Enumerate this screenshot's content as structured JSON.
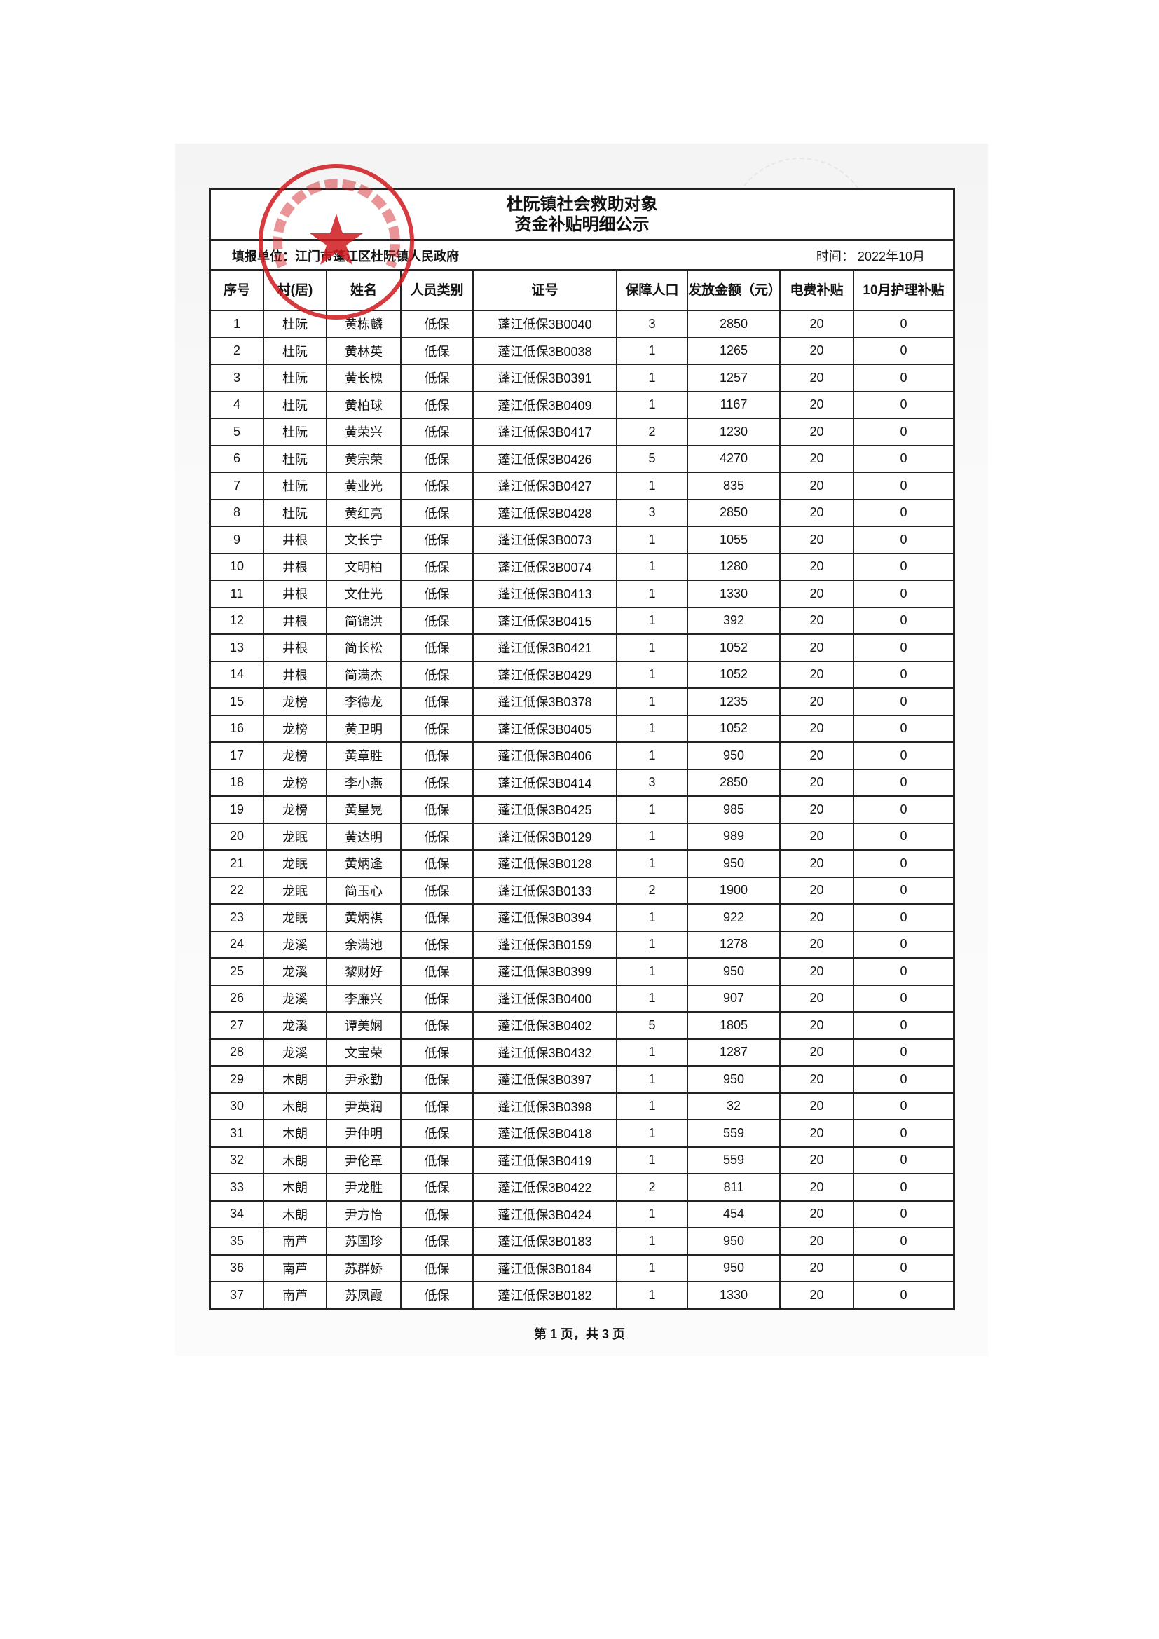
{
  "document": {
    "title_line1": "杜阮镇社会救助对象",
    "title_line2": "资金补贴明细公示",
    "unit_label": "填报单位：江门市蓬江区杜阮镇人民政府",
    "date_label": "时间：  2022年10月",
    "stamp_text": "江门市蓬江区杜阮镇人民政府",
    "stamp_color": "#d0191f",
    "footer": "第 1 页，共 3 页"
  },
  "table": {
    "headers": [
      "序号",
      "村(居)",
      "姓名",
      "人员类别",
      "证号",
      "保障人口",
      "发放金额（元）",
      "电费补贴",
      "10月护理补贴"
    ],
    "rows": [
      [
        "1",
        "杜阮",
        "黄栋麟",
        "低保",
        "蓬江低保3B0040",
        "3",
        "2850",
        "20",
        "0"
      ],
      [
        "2",
        "杜阮",
        "黄林英",
        "低保",
        "蓬江低保3B0038",
        "1",
        "1265",
        "20",
        "0"
      ],
      [
        "3",
        "杜阮",
        "黄长槐",
        "低保",
        "蓬江低保3B0391",
        "1",
        "1257",
        "20",
        "0"
      ],
      [
        "4",
        "杜阮",
        "黄柏球",
        "低保",
        "蓬江低保3B0409",
        "1",
        "1167",
        "20",
        "0"
      ],
      [
        "5",
        "杜阮",
        "黄荣兴",
        "低保",
        "蓬江低保3B0417",
        "2",
        "1230",
        "20",
        "0"
      ],
      [
        "6",
        "杜阮",
        "黄宗荣",
        "低保",
        "蓬江低保3B0426",
        "5",
        "4270",
        "20",
        "0"
      ],
      [
        "7",
        "杜阮",
        "黄业光",
        "低保",
        "蓬江低保3B0427",
        "1",
        "835",
        "20",
        "0"
      ],
      [
        "8",
        "杜阮",
        "黄红亮",
        "低保",
        "蓬江低保3B0428",
        "3",
        "2850",
        "20",
        "0"
      ],
      [
        "9",
        "井根",
        "文长宁",
        "低保",
        "蓬江低保3B0073",
        "1",
        "1055",
        "20",
        "0"
      ],
      [
        "10",
        "井根",
        "文明柏",
        "低保",
        "蓬江低保3B0074",
        "1",
        "1280",
        "20",
        "0"
      ],
      [
        "11",
        "井根",
        "文仕光",
        "低保",
        "蓬江低保3B0413",
        "1",
        "1330",
        "20",
        "0"
      ],
      [
        "12",
        "井根",
        "简锦洪",
        "低保",
        "蓬江低保3B0415",
        "1",
        "392",
        "20",
        "0"
      ],
      [
        "13",
        "井根",
        "简长松",
        "低保",
        "蓬江低保3B0421",
        "1",
        "1052",
        "20",
        "0"
      ],
      [
        "14",
        "井根",
        "简满杰",
        "低保",
        "蓬江低保3B0429",
        "1",
        "1052",
        "20",
        "0"
      ],
      [
        "15",
        "龙榜",
        "李德龙",
        "低保",
        "蓬江低保3B0378",
        "1",
        "1235",
        "20",
        "0"
      ],
      [
        "16",
        "龙榜",
        "黄卫明",
        "低保",
        "蓬江低保3B0405",
        "1",
        "1052",
        "20",
        "0"
      ],
      [
        "17",
        "龙榜",
        "黄章胜",
        "低保",
        "蓬江低保3B0406",
        "1",
        "950",
        "20",
        "0"
      ],
      [
        "18",
        "龙榜",
        "李小燕",
        "低保",
        "蓬江低保3B0414",
        "3",
        "2850",
        "20",
        "0"
      ],
      [
        "19",
        "龙榜",
        "黄星晃",
        "低保",
        "蓬江低保3B0425",
        "1",
        "985",
        "20",
        "0"
      ],
      [
        "20",
        "龙眠",
        "黄达明",
        "低保",
        "蓬江低保3B0129",
        "1",
        "989",
        "20",
        "0"
      ],
      [
        "21",
        "龙眠",
        "黄炳逢",
        "低保",
        "蓬江低保3B0128",
        "1",
        "950",
        "20",
        "0"
      ],
      [
        "22",
        "龙眠",
        "简玉心",
        "低保",
        "蓬江低保3B0133",
        "2",
        "1900",
        "20",
        "0"
      ],
      [
        "23",
        "龙眠",
        "黄炳祺",
        "低保",
        "蓬江低保3B0394",
        "1",
        "922",
        "20",
        "0"
      ],
      [
        "24",
        "龙溪",
        "余满池",
        "低保",
        "蓬江低保3B0159",
        "1",
        "1278",
        "20",
        "0"
      ],
      [
        "25",
        "龙溪",
        "黎财好",
        "低保",
        "蓬江低保3B0399",
        "1",
        "950",
        "20",
        "0"
      ],
      [
        "26",
        "龙溪",
        "李廉兴",
        "低保",
        "蓬江低保3B0400",
        "1",
        "907",
        "20",
        "0"
      ],
      [
        "27",
        "龙溪",
        "谭美娴",
        "低保",
        "蓬江低保3B0402",
        "5",
        "1805",
        "20",
        "0"
      ],
      [
        "28",
        "龙溪",
        "文宝荣",
        "低保",
        "蓬江低保3B0432",
        "1",
        "1287",
        "20",
        "0"
      ],
      [
        "29",
        "木朗",
        "尹永勤",
        "低保",
        "蓬江低保3B0397",
        "1",
        "950",
        "20",
        "0"
      ],
      [
        "30",
        "木朗",
        "尹英润",
        "低保",
        "蓬江低保3B0398",
        "1",
        "32",
        "20",
        "0"
      ],
      [
        "31",
        "木朗",
        "尹仲明",
        "低保",
        "蓬江低保3B0418",
        "1",
        "559",
        "20",
        "0"
      ],
      [
        "32",
        "木朗",
        "尹伦章",
        "低保",
        "蓬江低保3B0419",
        "1",
        "559",
        "20",
        "0"
      ],
      [
        "33",
        "木朗",
        "尹龙胜",
        "低保",
        "蓬江低保3B0422",
        "2",
        "811",
        "20",
        "0"
      ],
      [
        "34",
        "木朗",
        "尹方怡",
        "低保",
        "蓬江低保3B0424",
        "1",
        "454",
        "20",
        "0"
      ],
      [
        "35",
        "南芦",
        "苏国珍",
        "低保",
        "蓬江低保3B0183",
        "1",
        "950",
        "20",
        "0"
      ],
      [
        "36",
        "南芦",
        "苏群娇",
        "低保",
        "蓬江低保3B0184",
        "1",
        "950",
        "20",
        "0"
      ],
      [
        "37",
        "南芦",
        "苏凤霞",
        "低保",
        "蓬江低保3B0182",
        "1",
        "1330",
        "20",
        "0"
      ]
    ]
  }
}
